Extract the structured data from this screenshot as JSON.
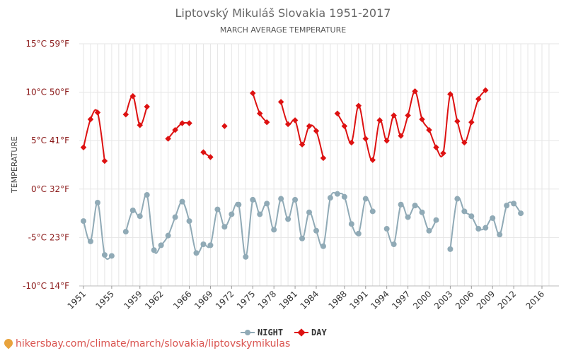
{
  "chart_data": {
    "type": "line",
    "title": "Liptovský Mikuláš Slovakia 1951-2017",
    "subtitle": "MARCH AVERAGE TEMPERATURE",
    "ylabel": "TEMPERATURE",
    "ylim": [
      -10,
      15
    ],
    "yticks": [
      {
        "value": -10,
        "label": "-10°C 14°F"
      },
      {
        "value": -5,
        "label": "-5°C 23°F"
      },
      {
        "value": 0,
        "label": "0°C 32°F"
      },
      {
        "value": 5,
        "label": "5°C 41°F"
      },
      {
        "value": 10,
        "label": "10°C 50°F"
      },
      {
        "value": 15,
        "label": "15°C 59°F"
      }
    ],
    "xlim": [
      1951,
      2017
    ],
    "xticks": [
      "1951",
      "1955",
      "1959",
      "1962",
      "1966",
      "1969",
      "1972",
      "1975",
      "1978",
      "1981",
      "1984",
      "1988",
      "1991",
      "1994",
      "1997",
      "2000",
      "2003",
      "2006",
      "2009",
      "2012",
      "2016"
    ],
    "series": [
      {
        "name": "NIGHT",
        "color": "#90aab6",
        "marker": "circle",
        "points": [
          [
            1951,
            -3.3
          ],
          [
            1952,
            -5.4
          ],
          [
            1953,
            -1.4
          ],
          [
            1954,
            -6.8
          ],
          [
            1955,
            -6.9
          ],
          [
            1957,
            -4.4
          ],
          [
            1958,
            -2.2
          ],
          [
            1959,
            -2.8
          ],
          [
            1960,
            -0.6
          ],
          [
            1961,
            -6.3
          ],
          [
            1962,
            -5.8
          ],
          [
            1963,
            -4.8
          ],
          [
            1964,
            -2.9
          ],
          [
            1965,
            -1.3
          ],
          [
            1966,
            -3.3
          ],
          [
            1967,
            -6.6
          ],
          [
            1968,
            -5.7
          ],
          [
            1969,
            -5.8
          ],
          [
            1970,
            -2.1
          ],
          [
            1971,
            -3.9
          ],
          [
            1972,
            -2.6
          ],
          [
            1973,
            -1.6
          ],
          [
            1974,
            -7.0
          ],
          [
            1975,
            -1.1
          ],
          [
            1976,
            -2.6
          ],
          [
            1977,
            -1.5
          ],
          [
            1978,
            -4.2
          ],
          [
            1979,
            -1.0
          ],
          [
            1980,
            -3.1
          ],
          [
            1981,
            -1.1
          ],
          [
            1982,
            -5.1
          ],
          [
            1983,
            -2.4
          ],
          [
            1984,
            -4.3
          ],
          [
            1985,
            -5.9
          ],
          [
            1986,
            -0.9
          ],
          [
            1987,
            -0.5
          ],
          [
            1988,
            -0.8
          ],
          [
            1989,
            -3.6
          ],
          [
            1990,
            -4.6
          ],
          [
            1991,
            -1.0
          ],
          [
            1992,
            -2.3
          ],
          [
            1994,
            -4.1
          ],
          [
            1995,
            -5.7
          ],
          [
            1996,
            -1.6
          ],
          [
            1997,
            -2.9
          ],
          [
            1998,
            -1.7
          ],
          [
            1999,
            -2.4
          ],
          [
            2000,
            -4.3
          ],
          [
            2001,
            -3.2
          ],
          [
            2003,
            -6.2
          ],
          [
            2004,
            -1.0
          ],
          [
            2005,
            -2.3
          ],
          [
            2006,
            -2.8
          ],
          [
            2007,
            -4.1
          ],
          [
            2008,
            -4.0
          ],
          [
            2009,
            -3.0
          ],
          [
            2010,
            -4.7
          ],
          [
            2011,
            -1.7
          ],
          [
            2012,
            -1.5
          ],
          [
            2013,
            -2.5
          ]
        ]
      },
      {
        "name": "DAY",
        "color": "#dd1111",
        "marker": "diamond",
        "points": [
          [
            1951,
            4.3
          ],
          [
            1952,
            7.2
          ],
          [
            1953,
            7.9
          ],
          [
            1954,
            2.9
          ],
          [
            1957,
            7.7
          ],
          [
            1958,
            9.6
          ],
          [
            1959,
            6.6
          ],
          [
            1960,
            8.5
          ],
          [
            1963,
            5.2
          ],
          [
            1964,
            6.1
          ],
          [
            1965,
            6.8
          ],
          [
            1966,
            6.8
          ],
          [
            1968,
            3.8
          ],
          [
            1969,
            3.3
          ],
          [
            1971,
            6.5
          ],
          [
            1975,
            9.9
          ],
          [
            1976,
            7.8
          ],
          [
            1977,
            6.9
          ],
          [
            1979,
            9.0
          ],
          [
            1980,
            6.7
          ],
          [
            1981,
            7.1
          ],
          [
            1982,
            4.6
          ],
          [
            1983,
            6.5
          ],
          [
            1984,
            6.0
          ],
          [
            1985,
            3.2
          ],
          [
            1987,
            7.8
          ],
          [
            1988,
            6.5
          ],
          [
            1989,
            4.8
          ],
          [
            1990,
            8.6
          ],
          [
            1991,
            5.2
          ],
          [
            1992,
            3.0
          ],
          [
            1993,
            7.1
          ],
          [
            1994,
            5.0
          ],
          [
            1995,
            7.6
          ],
          [
            1996,
            5.5
          ],
          [
            1997,
            7.6
          ],
          [
            1998,
            10.1
          ],
          [
            1999,
            7.2
          ],
          [
            2000,
            6.1
          ],
          [
            2001,
            4.3
          ],
          [
            2002,
            3.7
          ],
          [
            2003,
            9.8
          ],
          [
            2004,
            7.0
          ],
          [
            2005,
            4.8
          ],
          [
            2006,
            6.9
          ],
          [
            2007,
            9.3
          ],
          [
            2008,
            10.2
          ]
        ]
      }
    ],
    "legend": {
      "position": "bottom-center",
      "items": [
        "NIGHT",
        "DAY"
      ]
    },
    "grid": true
  },
  "footer": {
    "text": "hikersbay.com/climate/march/slovakia/liptovskymikulas"
  }
}
